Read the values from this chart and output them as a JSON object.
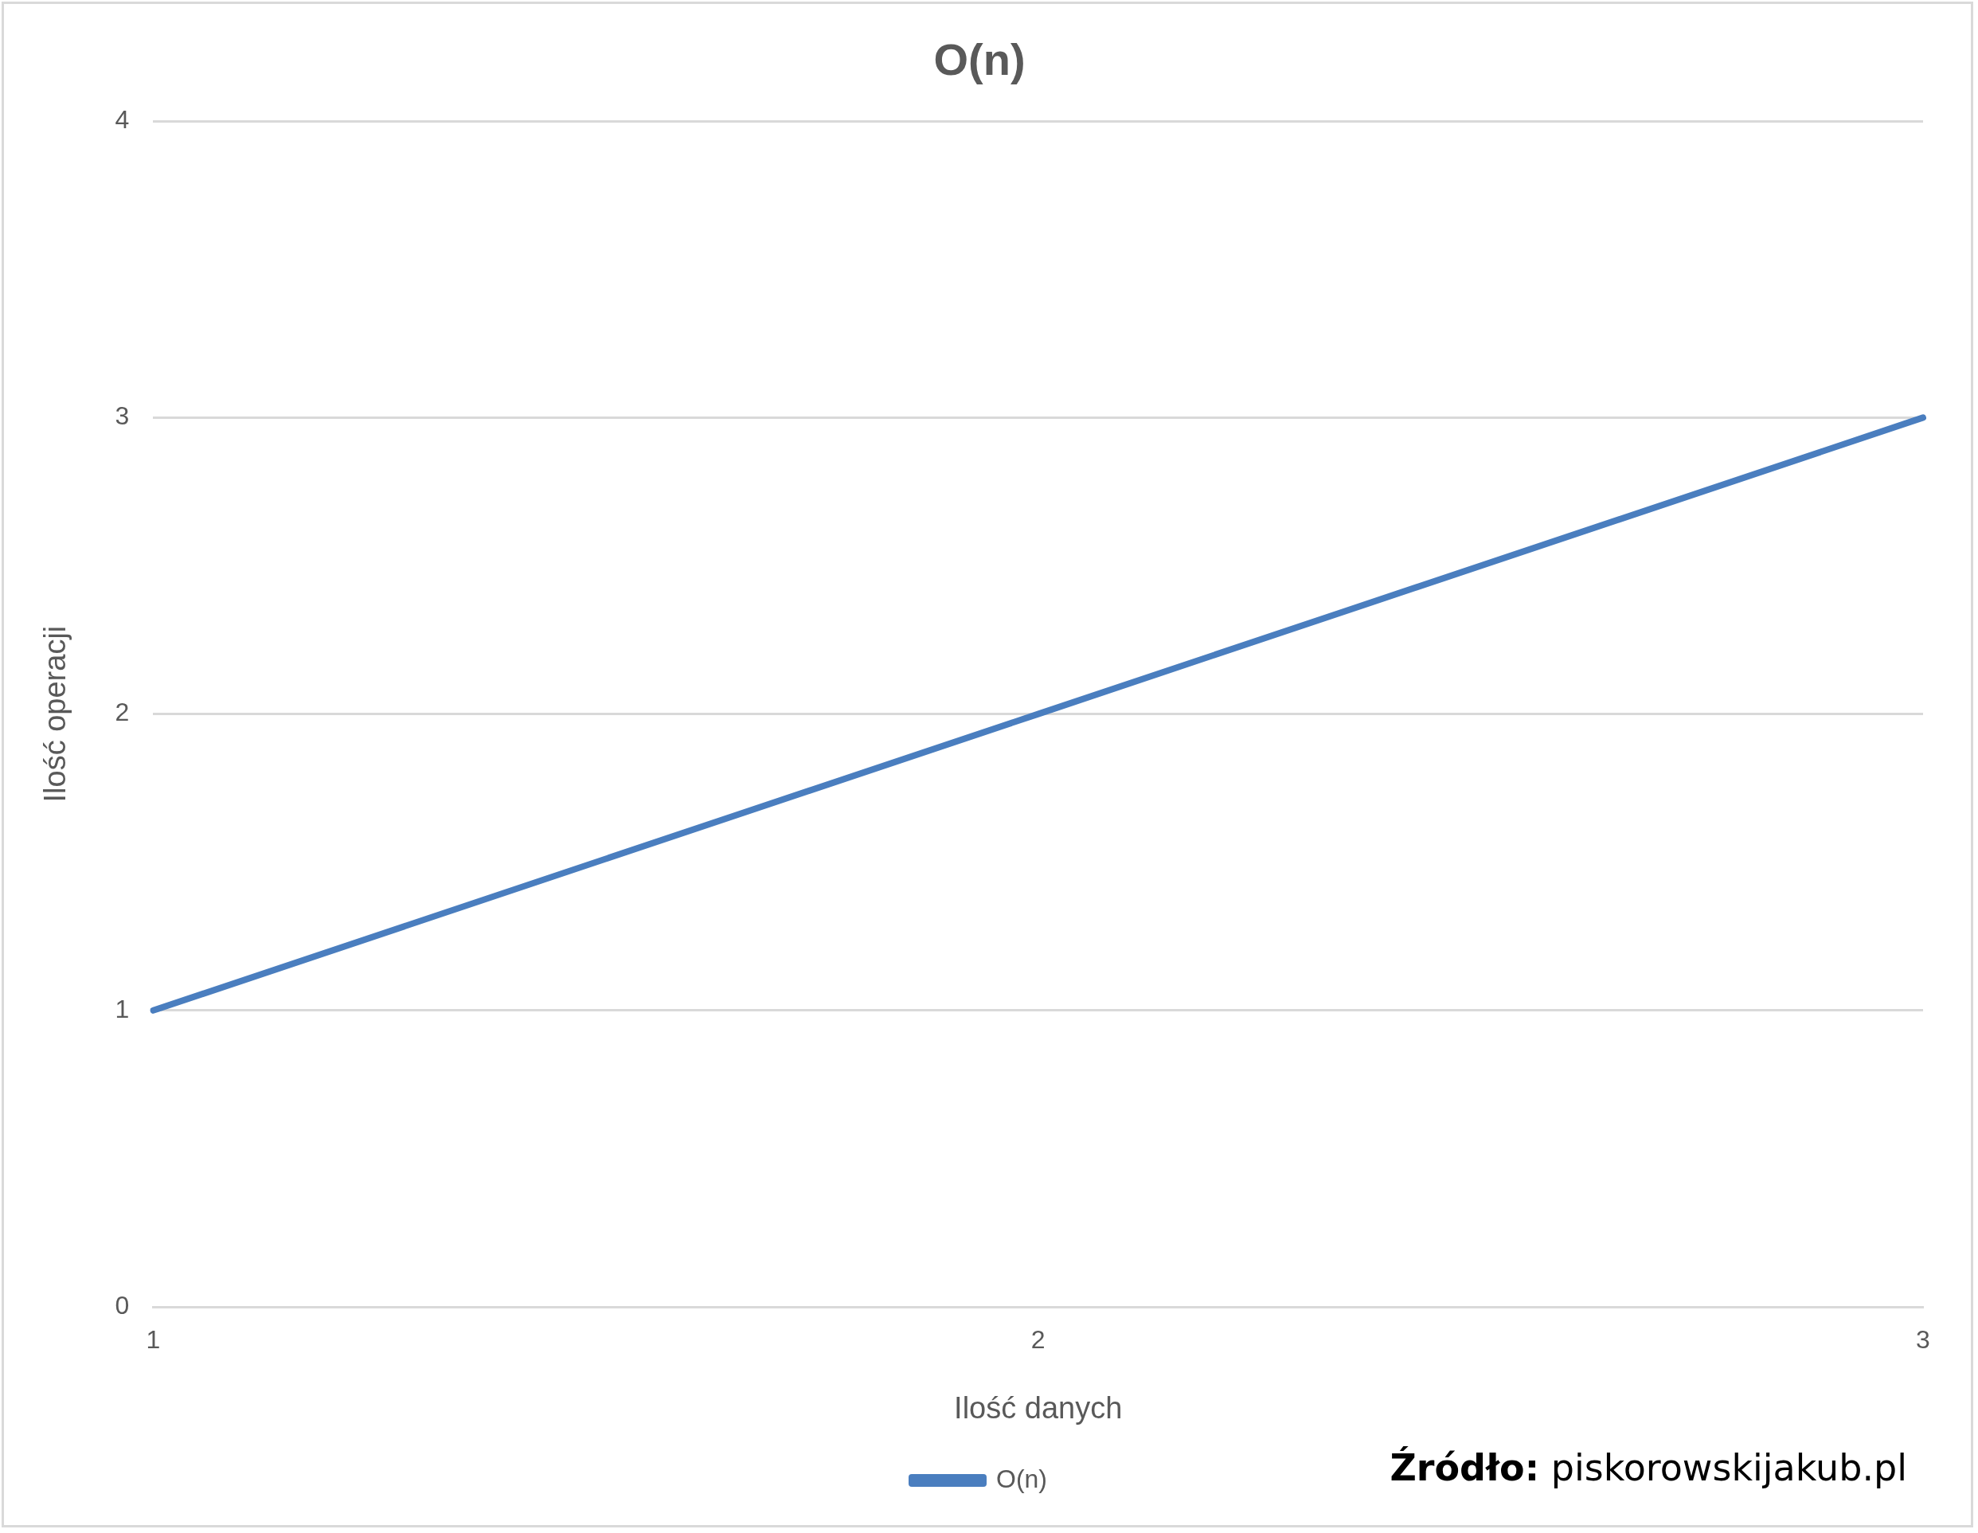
{
  "chart_data": {
    "type": "line",
    "title": "O(n)",
    "xlabel": "Ilość danych",
    "ylabel": "Ilość operacji",
    "categories": [
      "1",
      "2",
      "3"
    ],
    "series": [
      {
        "name": "O(n)",
        "color": "#4a7ebf",
        "values": [
          1,
          2,
          3
        ]
      }
    ],
    "ylim": [
      0,
      4
    ],
    "yticks": [
      0,
      1,
      2,
      3,
      4
    ],
    "grid": "y",
    "legend": "bottom",
    "marker": "none",
    "line_style": "solid",
    "annotations": [
      "Źródło: piskorowskijakub.pl"
    ]
  }
}
